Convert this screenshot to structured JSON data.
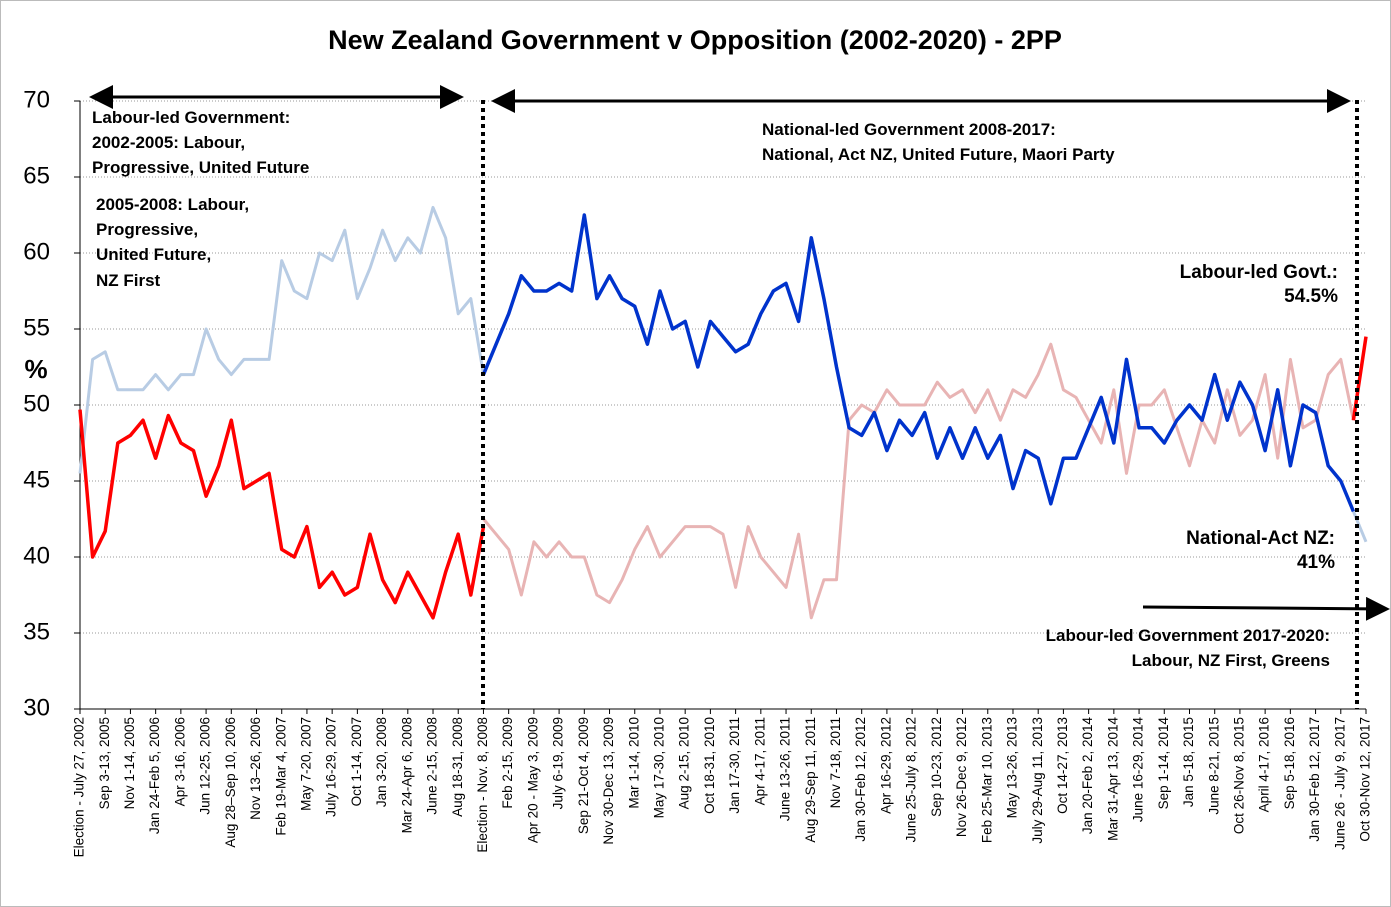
{
  "chart_data": {
    "type": "line",
    "title": "New Zealand Government v Opposition (2002-2020) - 2PP",
    "y_label": "%",
    "ylim": [
      30,
      70
    ],
    "yticks": [
      30,
      35,
      40,
      45,
      50,
      55,
      60,
      65,
      70
    ],
    "grid": true,
    "categories": [
      "Election - July 27, 2002",
      null,
      "Sep 3-13, 2005",
      null,
      "Nov 1-14, 2005",
      null,
      "Jan 24-Feb 5, 2006",
      null,
      "Apr 3-16, 2006",
      null,
      "Jun 12-25, 2006",
      null,
      "Aug 28–Sep 10, 2006",
      null,
      "Nov 13–26, 2006",
      null,
      "Feb 19-Mar 4, 2007",
      null,
      "May 7-20, 2007",
      null,
      "July 16-29, 2007",
      null,
      "Oct 1-14, 2007",
      null,
      "Jan 3-20, 2008",
      null,
      "Mar 24-Apr 6, 2008",
      null,
      "June 2-15, 2008",
      null,
      "Aug 18-31, 2008",
      null,
      "Election - Nov. 8, 2008",
      null,
      "Feb 2-15, 2009",
      null,
      "Apr 20 - May 3, 2009",
      null,
      "July 6-19, 2009",
      null,
      "Sep 21-Oct 4, 2009",
      null,
      "Nov 30-Dec 13, 2009",
      null,
      "Mar 1-14, 2010",
      null,
      "May 17-30, 2010",
      null,
      "Aug 2-15, 2010",
      null,
      "Oct 18-31, 2010",
      null,
      "Jan 17-30, 2011",
      null,
      "Apr 4-17, 2011",
      null,
      "June 13-26, 2011",
      null,
      "Aug 29-Sep 11, 2011",
      null,
      "Nov 7-18, 2011",
      null,
      "Jan 30-Feb 12, 2012",
      null,
      "Apr 16-29, 2012",
      null,
      "June 25-July 8, 2012",
      null,
      "Sep 10-23, 2012",
      null,
      "Nov 26-Dec 9, 2012",
      null,
      "Feb 25-Mar 10, 2013",
      null,
      "May 13-26, 2013",
      null,
      "July 29-Aug 11, 2013",
      null,
      "Oct 14-27, 2013",
      null,
      "Jan 20-Feb 2, 2014",
      null,
      "Mar 31-Apr 13, 2014",
      null,
      "June 16-29, 2014",
      null,
      "Sep 1-14, 2014",
      null,
      "Jan 5-18, 2015",
      null,
      "June 8-21, 2015",
      null,
      "Oct 26-Nov 8, 2015",
      null,
      "April 4-17, 2016",
      null,
      "Sep 5-18, 2016",
      null,
      "Jan 30-Feb 12, 2017",
      null,
      "June 26 - July 9, 2017",
      null,
      "Oct 30-Nov 12, 2017"
    ],
    "series": [
      {
        "color": "#e8b4b4",
        "width": 3,
        "values": [
          null,
          null,
          null,
          null,
          null,
          null,
          null,
          null,
          null,
          null,
          null,
          null,
          null,
          null,
          null,
          null,
          null,
          null,
          null,
          null,
          null,
          null,
          null,
          null,
          null,
          null,
          null,
          null,
          null,
          null,
          null,
          null,
          42.5,
          41.5,
          40.5,
          37.5,
          41,
          40,
          41,
          40,
          40,
          37.5,
          37,
          38.5,
          40.5,
          42,
          40,
          41,
          42,
          42,
          42,
          41.5,
          38,
          42,
          40,
          39,
          38,
          41.5,
          36,
          38.5,
          38.5,
          49,
          50,
          49.5,
          51,
          50,
          50,
          50,
          51.5,
          50.5,
          51,
          49.5,
          51,
          49,
          51,
          50.5,
          52,
          54,
          51,
          50.5,
          49,
          47.5,
          51,
          45.5,
          50,
          50,
          51,
          48.5,
          46,
          49,
          47.5,
          51,
          48,
          49,
          52,
          46.5,
          53,
          48.5,
          49,
          52,
          53,
          49,
          null
        ]
      },
      {
        "color": "#b8cce4",
        "width": 3,
        "values": [
          45.5,
          53,
          53.5,
          51,
          51,
          51,
          52,
          51,
          52,
          52,
          55,
          53,
          52,
          53,
          53,
          53,
          59.5,
          57.5,
          57,
          60,
          59.5,
          61.5,
          57,
          59,
          61.5,
          59.5,
          61,
          60,
          63,
          61,
          56,
          57,
          52,
          null,
          null,
          null,
          null,
          null,
          null,
          null,
          null,
          null,
          null,
          null,
          null,
          null,
          null,
          null,
          null,
          null,
          null,
          null,
          null,
          null,
          null,
          null,
          null,
          null,
          null,
          null,
          null,
          null,
          null,
          null,
          null,
          null,
          null,
          null,
          null,
          null,
          null,
          null,
          null,
          null,
          null,
          null,
          null,
          null,
          null,
          null,
          null,
          null,
          null,
          null,
          null,
          null,
          null,
          null,
          null,
          null,
          null,
          null,
          null,
          null,
          null,
          null,
          null,
          null,
          null,
          null,
          null,
          43,
          41
        ]
      },
      {
        "color": "#ff0000",
        "width": 3.5,
        "values": [
          49.7,
          40,
          41.7,
          47.5,
          48,
          49,
          46.5,
          49.3,
          47.5,
          47,
          44,
          46,
          49,
          44.5,
          45,
          45.5,
          40.5,
          40,
          42,
          38,
          39,
          37.5,
          38,
          41.5,
          38.5,
          37,
          39,
          37.5,
          36,
          39,
          41.5,
          37.5,
          42,
          null,
          null,
          null,
          null,
          null,
          null,
          null,
          null,
          null,
          null,
          null,
          null,
          null,
          null,
          null,
          null,
          null,
          null,
          null,
          null,
          null,
          null,
          null,
          null,
          null,
          null,
          null,
          null,
          null,
          null,
          null,
          null,
          null,
          null,
          null,
          null,
          null,
          null,
          null,
          null,
          null,
          null,
          null,
          null,
          null,
          null,
          null,
          null,
          null,
          null,
          null,
          null,
          null,
          null,
          null,
          null,
          null,
          null,
          null,
          null,
          null,
          null,
          null,
          null,
          null,
          null,
          null,
          null,
          49,
          54.5
        ]
      },
      {
        "color": "#0033cc",
        "width": 3.5,
        "values": [
          null,
          null,
          null,
          null,
          null,
          null,
          null,
          null,
          null,
          null,
          null,
          null,
          null,
          null,
          null,
          null,
          null,
          null,
          null,
          null,
          null,
          null,
          null,
          null,
          null,
          null,
          null,
          null,
          null,
          null,
          null,
          null,
          52,
          54,
          56,
          58.5,
          57.5,
          57.5,
          58,
          57.5,
          62.5,
          57,
          58.5,
          57,
          56.5,
          54,
          57.5,
          55,
          55.5,
          52.5,
          55.5,
          54.5,
          53.5,
          54,
          56,
          57.5,
          58,
          55.5,
          61,
          57,
          52.5,
          48.5,
          48,
          49.5,
          47,
          49,
          48,
          49.5,
          46.5,
          48.5,
          46.5,
          48.5,
          46.5,
          48,
          44.5,
          47,
          46.5,
          43.5,
          46.5,
          46.5,
          48.5,
          50.5,
          47.5,
          53,
          48.5,
          48.5,
          47.5,
          49,
          50,
          49,
          52,
          49,
          51.5,
          50,
          47,
          51,
          46,
          50,
          49.5,
          46,
          45,
          43,
          null
        ]
      }
    ],
    "annotations": {
      "labour_2002": [
        "Labour-led Government:",
        "2002-2005: Labour,",
        "Progressive, United Future"
      ],
      "labour_2005": [
        "2005-2008: Labour,",
        "Progressive,",
        "United Future,",
        "NZ First"
      ],
      "national": [
        "National-led Government 2008-2017:",
        "National, Act NZ, United Future, Maori Party"
      ],
      "labour_now": [
        "Labour-led Govt.:",
        "54.5%"
      ],
      "national_now": [
        "National-Act NZ:",
        "41%"
      ],
      "labour_2017": [
        "Labour-led Government 2017-2020:",
        "Labour, NZ First, Greens"
      ]
    }
  }
}
